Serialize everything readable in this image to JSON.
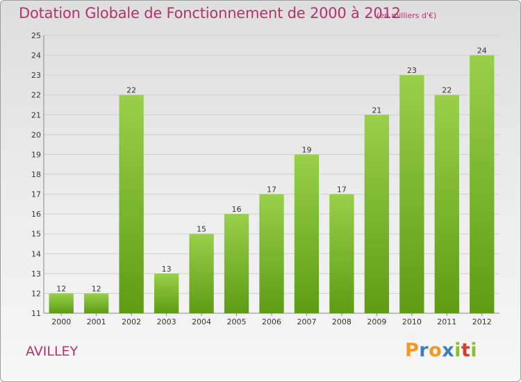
{
  "chart_data": {
    "type": "bar",
    "title": "Dotation Globale de Fonctionnement de 2000 à 2012",
    "unit": "(en milliers d'€)",
    "categories": [
      "2000",
      "2001",
      "2002",
      "2003",
      "2004",
      "2005",
      "2006",
      "2007",
      "2008",
      "2009",
      "2010",
      "2011",
      "2012"
    ],
    "values": [
      12,
      12,
      22,
      13,
      15,
      16,
      17,
      19,
      17,
      21,
      23,
      22,
      24
    ],
    "ylim": [
      11,
      25
    ],
    "yticks": [
      11,
      12,
      13,
      14,
      15,
      16,
      17,
      18,
      19,
      20,
      21,
      22,
      23,
      24,
      25
    ],
    "xlabel": "",
    "ylabel": "",
    "grid": true,
    "colors": {
      "bar_top": "#98d04a",
      "bar_bottom": "#5e9c16",
      "title": "#b5306e"
    }
  },
  "place": "AVILLEY",
  "logo": {
    "letters": [
      "P",
      "r",
      "o",
      "x",
      "i",
      "t",
      "i"
    ],
    "colors": [
      "#f39a1e",
      "#3a7fc4",
      "#f39a1e",
      "#3a7fc4",
      "#8cbf26",
      "#e0382e",
      "#8cbf26"
    ]
  }
}
